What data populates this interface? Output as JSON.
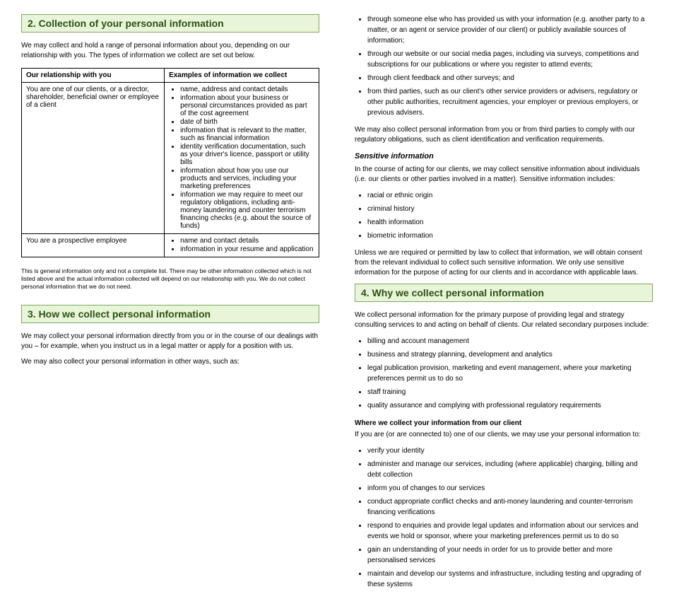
{
  "leftCol": {
    "sec2": {
      "title": "2. Collection of your personal information",
      "intro": "We may collect and hold a range of personal information about you, depending on our relationship with you. The types of information we collect are set out below.",
      "table": {
        "headers": [
          "Our relationship with you",
          "Examples of information we collect"
        ],
        "rows": [
          {
            "rel": "You are one of our clients, or a director, shareholder, beneficial owner or employee of a client",
            "items": [
              "name, address and contact details",
              "information about your business or personal circumstances provided as part of the cost agreement",
              "date of birth",
              "information that is relevant to the matter, such as financial information",
              "identity verification documentation, such as your driver's licence, passport or utility bills",
              "information about how you use our products and services, including your marketing preferences",
              "information we may require to meet our regulatory obligations, including anti-money laundering and counter terrorism financing checks (e.g. about the source of funds)"
            ]
          },
          {
            "rel": "You are a prospective employee",
            "items": [
              "name and contact details",
              "information in your resume and application"
            ]
          }
        ]
      },
      "footnote": "This is general information only and not a complete list. There may be other information collected which is not listed above and the actual information collected will depend on our relationship with you. We do not collect personal information that we do not need."
    },
    "sec3": {
      "title": "3. How we collect personal information",
      "p1": "We may collect your personal information directly from you or in the course of our dealings with you – for example, when you instruct us in a legal matter or apply for a position with us.",
      "p2": "We may also collect your personal information in other ways, such as:"
    }
  },
  "rightCol": {
    "sec3cont": [
      "through someone else who has provided us with your information (e.g. another party to a matter, or an agent or service provider of our client) or publicly available sources of information;",
      "through our website or our social media pages, including via surveys, competitions and subscriptions for our publications or where you register to attend events;",
      "through client feedback and other surveys; and",
      "from third parties, such as our client's other service providers or advisers, regulatory or other public authorities, recruitment agencies, your employer or previous employers, or previous advisers."
    ],
    "sec3p2": "We may also collect personal information from you or from third parties to comply with our regulatory obligations, such as client identification and verification requirements.",
    "sensitiveHead": "Sensitive information",
    "sensitiveP": "In the course of acting for our clients, we may collect sensitive information about individuals (i.e. our clients or other parties involved in a matter). Sensitive information includes:",
    "sensitiveItems": [
      "racial or ethnic origin",
      "criminal history",
      "health information",
      "biometric information"
    ],
    "sensitiveP2": "Unless we are required or permitted by law to collect that information, we will obtain consent from the relevant individual to collect such sensitive information. We only use sensitive information for the purpose of acting for our clients and in accordance with applicable laws.",
    "sec4": {
      "title": "4. Why we collect personal information",
      "p1": "We collect personal information for the primary purpose of providing legal and strategy consulting services to and acting on behalf of clients. Our related secondary purposes include:",
      "items": [
        "billing and account management",
        "business and strategy planning, development and analytics",
        "legal publication provision, marketing and event management, where your marketing preferences permit us to do so",
        "staff training",
        "quality assurance and complying with professional regulatory requirements"
      ],
      "whereHead": "Where we collect your information from our client",
      "whereP": "If you are (or are connected to) one of our clients, we may use your personal information to:",
      "whereItems": [
        "verify your identity",
        "administer and manage our services, including (where applicable) charging, billing and debt collection",
        "inform you of changes to our services",
        "conduct appropriate conflict checks and anti-money laundering and counter-terrorism financing verifications",
        "respond to enquiries and provide legal updates and information about our services and events we hold or sponsor, where your marketing preferences permit us to do so",
        "gain an understanding of your needs in order for us to provide better and more personalised services",
        "maintain and develop our systems and infrastructure, including testing and upgrading of these systems"
      ]
    }
  }
}
